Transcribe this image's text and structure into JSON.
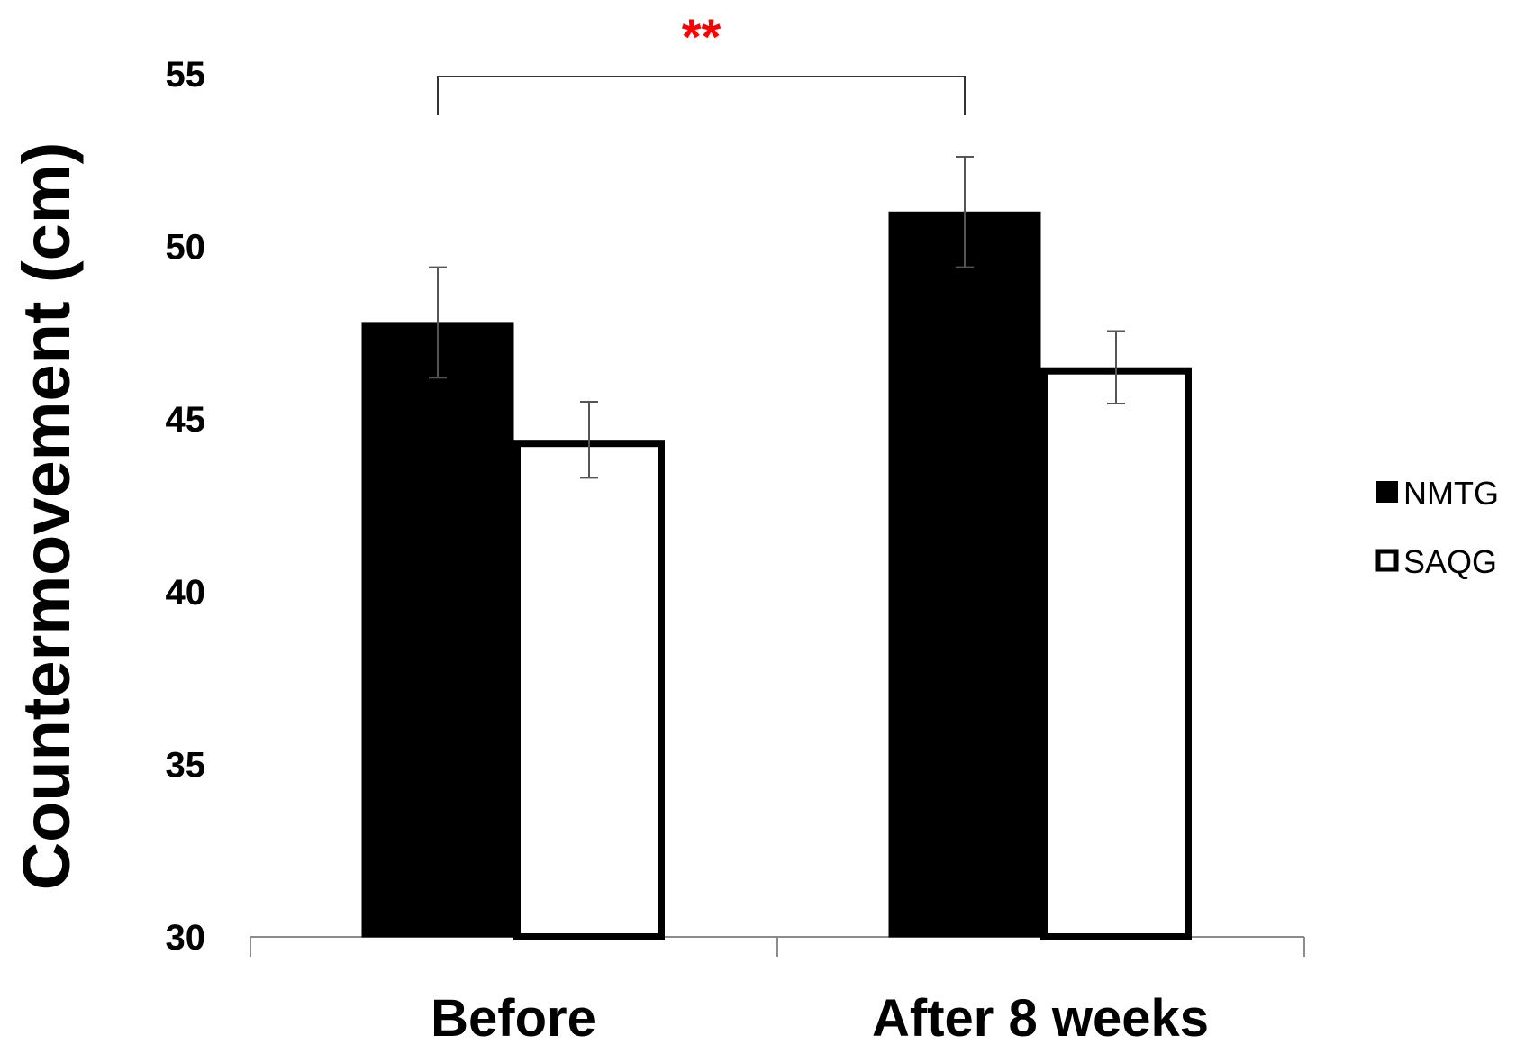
{
  "chart_data": {
    "type": "bar",
    "categories": [
      "Before",
      "After 8 weeks"
    ],
    "series": [
      {
        "name": "NMTG",
        "values": [
          47.8,
          51.0
        ],
        "error": [
          1.6,
          1.6
        ],
        "color": "#000000",
        "fill": "solid"
      },
      {
        "name": "SAQG",
        "values": [
          44.4,
          46.5
        ],
        "error": [
          1.1,
          1.05
        ],
        "color": "#000000",
        "fill": "white-outlined"
      }
    ],
    "ylabel": "Countermovement (cm)",
    "xlabel": "",
    "ylim": [
      30,
      55
    ],
    "yticks": [
      30,
      35,
      40,
      45,
      50,
      55
    ],
    "grid": false,
    "legend_position": "right",
    "annotations": [
      {
        "text": "**",
        "type": "significance-bracket",
        "between": [
          "Before",
          "After 8 weeks"
        ],
        "series": "NMTG",
        "color": "#ff0000"
      }
    ]
  }
}
